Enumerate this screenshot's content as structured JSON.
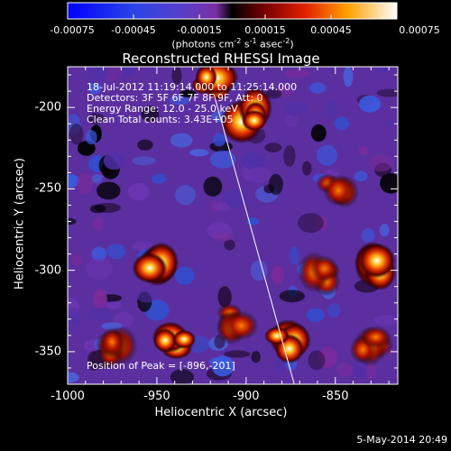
{
  "chart_data": {
    "type": "heatmap",
    "title": "Reconstructed RHESSI Image",
    "xlabel": "Heliocentric X (arcsec)",
    "ylabel": "Heliocentric Y (arcsec)",
    "xlim": [
      -1000,
      -815
    ],
    "ylim": [
      -370,
      -175
    ],
    "x_ticks": [
      "-1000",
      "-950",
      "-900",
      "-850"
    ],
    "x_tick_values": [
      -1000,
      -950,
      -900,
      -850
    ],
    "y_ticks": [
      "-200",
      "-250",
      "-300",
      "-350"
    ],
    "y_tick_values": [
      -200,
      -250,
      -300,
      -350
    ],
    "colorbar": {
      "range": [
        -0.00075,
        0.00075
      ],
      "tick_labels": [
        "-0.00075",
        "-0.00045",
        "-0.00015",
        "0.00015",
        "0.00045",
        "0.00075"
      ],
      "unit_parts": [
        "(photons cm",
        "-2",
        " s",
        "-1",
        " asec",
        "-2",
        ")"
      ]
    },
    "annotations": {
      "line1": "18-Jul-2012 11:19:14.000 to 11:25:14.000",
      "line2": "Detectors: 3F 5F 6F 7F 8F 9F, Att: 0",
      "line3": "Energy Range: 12.0 - 25.0 keV",
      "line4": "Clean     Total counts: 3.43E+05",
      "peak": "Position of Peak = [-896,-201]"
    },
    "limb_line": {
      "start": [
        -918,
        -192
      ],
      "end": [
        -873,
        -370
      ]
    },
    "peak": {
      "x": -896,
      "y": -201,
      "value": 0.00075
    },
    "hotspots": [
      {
        "x": -920,
        "y": -185,
        "value": 0.0007
      },
      {
        "x": -900,
        "y": -205,
        "value": 0.00075
      },
      {
        "x": -950,
        "y": -300,
        "value": 0.0005
      },
      {
        "x": -975,
        "y": -350,
        "value": 0.0004
      },
      {
        "x": -940,
        "y": -345,
        "value": 0.0005
      },
      {
        "x": -905,
        "y": -330,
        "value": 0.0004
      },
      {
        "x": -878,
        "y": -345,
        "value": 0.0005
      },
      {
        "x": -858,
        "y": -305,
        "value": 0.0004
      },
      {
        "x": -830,
        "y": -300,
        "value": 0.0006
      },
      {
        "x": -830,
        "y": -345,
        "value": 0.0004
      },
      {
        "x": -850,
        "y": -250,
        "value": 0.0003
      }
    ]
  },
  "footer": {
    "date": "5-May-2014 20:49"
  }
}
